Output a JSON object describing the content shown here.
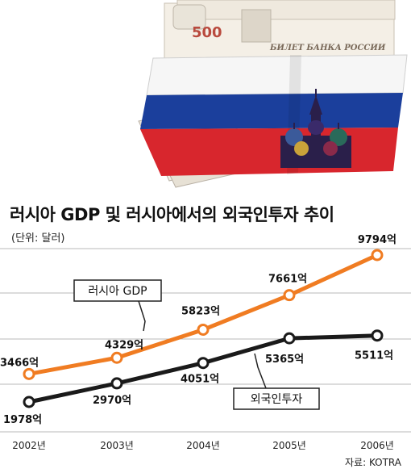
{
  "title": "러시아 GDP 및 러시아에서의 외국인투자 추이",
  "unit": "(단위: 달러)",
  "source": "자료: KOTRA",
  "illustration": {
    "banknote_denomination": "500",
    "banknote_text": "БИЛЕТ БАНКА РОССИИ",
    "flag_colors": [
      "#ffffff",
      "#1b3f9c",
      "#d8262d"
    ]
  },
  "colors": {
    "gdp": "#f07c22",
    "investment": "#1a1a1a"
  },
  "chart_data": {
    "type": "line",
    "title": "러시아 GDP 및 러시아에서의 외국인투자 추이",
    "unit": "(단위: 달러)",
    "categories": [
      "2002년",
      "2003년",
      "2004년",
      "2005년",
      "2006년"
    ],
    "series": [
      {
        "name": "러시아 GDP",
        "values": [
          3466,
          4329,
          5823,
          7661,
          9794
        ],
        "labels": [
          "3466억",
          "4329억",
          "5823억",
          "7661억",
          "9794억"
        ]
      },
      {
        "name": "외국인투자",
        "values": [
          1978,
          2970,
          4051,
          5365,
          5511
        ],
        "labels": [
          "1978억",
          "2970억",
          "4051억",
          "5365억",
          "5511억"
        ]
      }
    ],
    "grid": true,
    "source": "자료: KOTRA"
  }
}
